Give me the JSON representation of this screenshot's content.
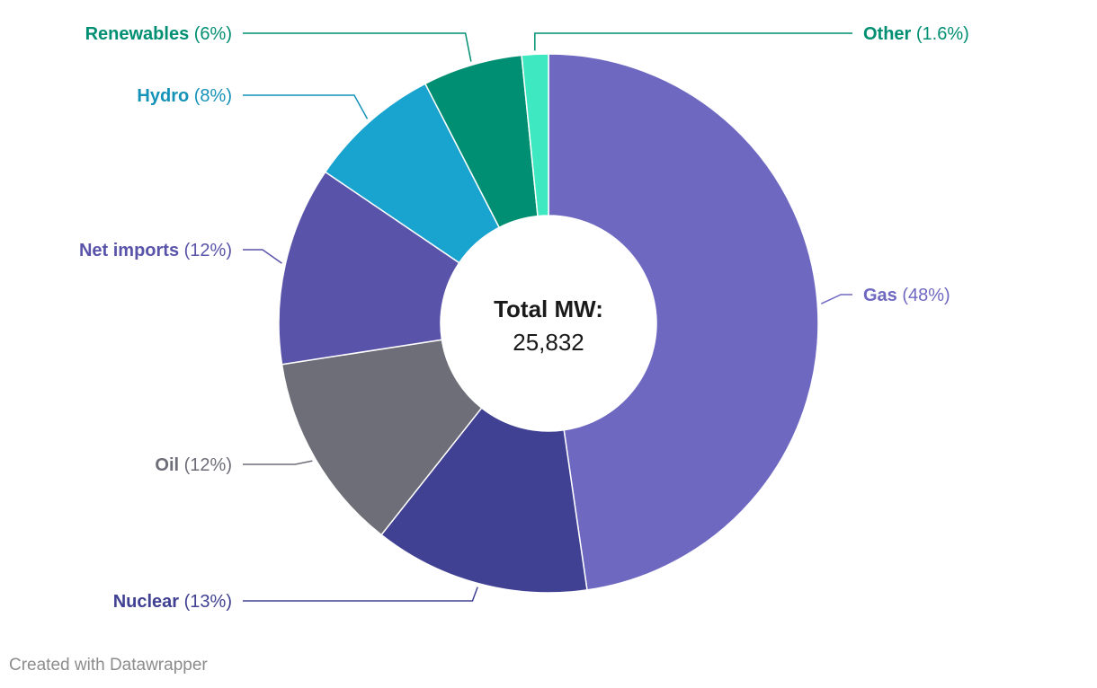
{
  "chart_data": {
    "type": "pie",
    "variant": "donut",
    "categories": [
      "Gas",
      "Nuclear",
      "Oil",
      "Net imports",
      "Hydro",
      "Renewables",
      "Other"
    ],
    "values": [
      48,
      13,
      12,
      12,
      8,
      6,
      1.6
    ],
    "labels": [
      "(48%)",
      "(13%)",
      "(12%)",
      "(12%)",
      "(8%)",
      "(6%)",
      "(1.6%)"
    ],
    "colors": [
      "#6e68c1",
      "#414193",
      "#6d6e78",
      "#5954a9",
      "#19a3cf",
      "#008f72",
      "#3ee8c0"
    ],
    "label_colors": [
      "#6e68c1",
      "#414193",
      "#6d6e78",
      "#5954a9",
      "#1592b8",
      "#008f72",
      "#008f72"
    ],
    "center_title": "Total MW:",
    "center_value": "25,832",
    "legend": "none",
    "grid": false
  },
  "credit": "Created with Datawrapper"
}
